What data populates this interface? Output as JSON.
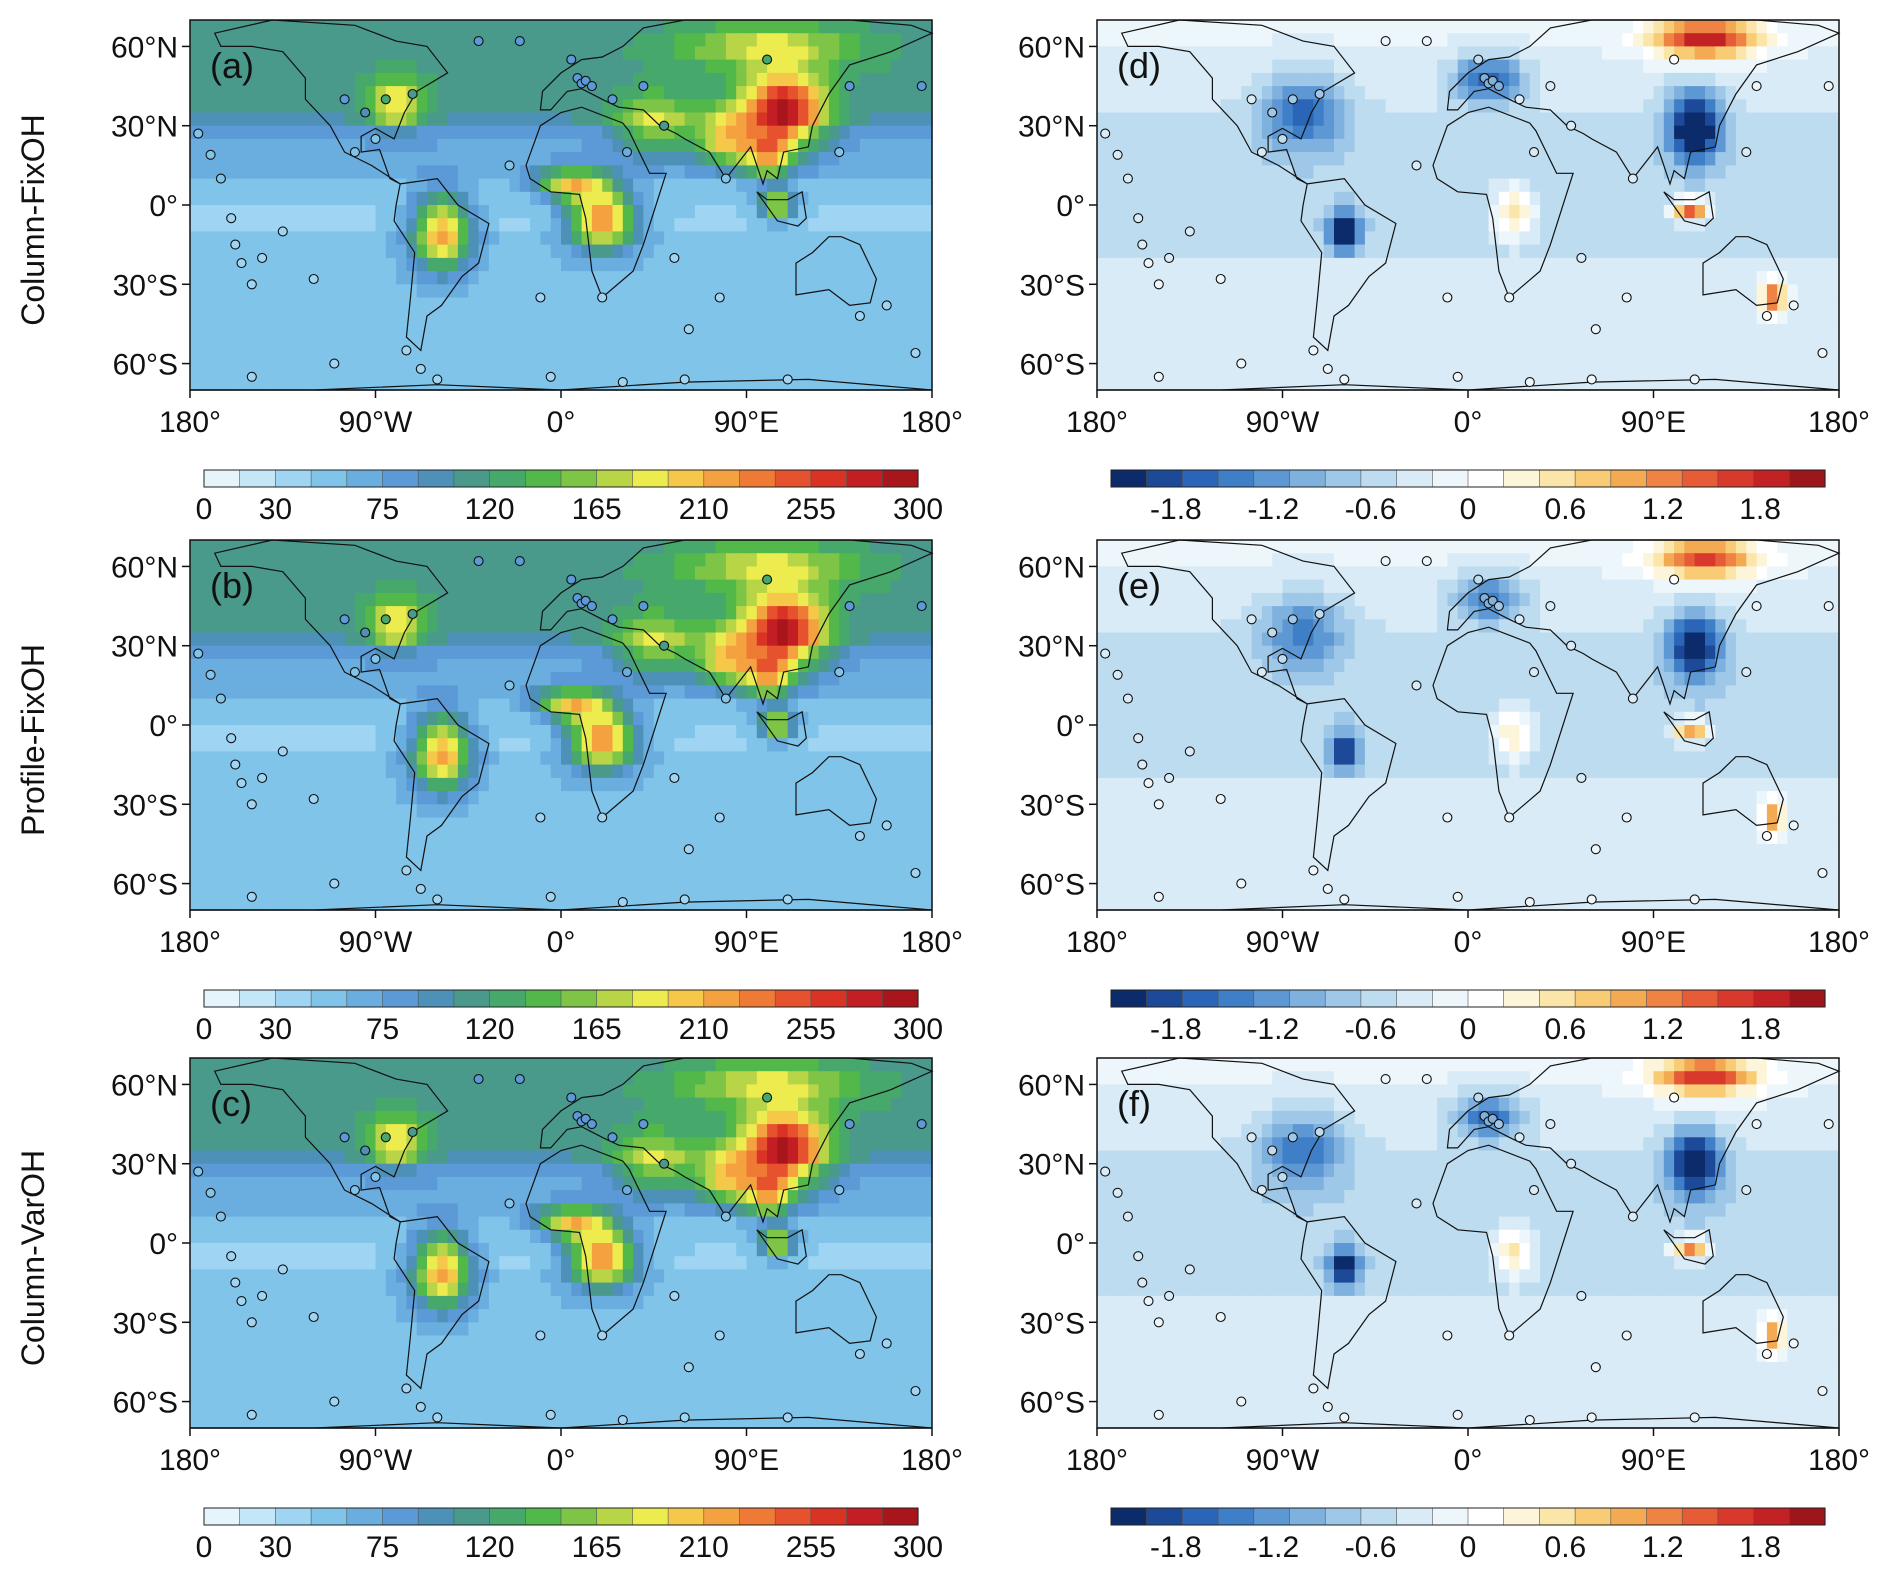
{
  "row_labels": [
    "Column-FixOH",
    "Profile-FixOH",
    "Column-VarOH"
  ],
  "panels": [
    {
      "letter": "(a)",
      "kind": "abs",
      "row": 0,
      "col": 0
    },
    {
      "letter": "(b)",
      "kind": "abs",
      "row": 1,
      "col": 0
    },
    {
      "letter": "(c)",
      "kind": "abs",
      "row": 2,
      "col": 0
    },
    {
      "letter": "(d)",
      "kind": "diff",
      "row": 0,
      "col": 1
    },
    {
      "letter": "(e)",
      "kind": "diff",
      "row": 1,
      "col": 1
    },
    {
      "letter": "(f)",
      "kind": "diff",
      "row": 2,
      "col": 1
    }
  ],
  "axes": {
    "lat_ticks": [
      "60°N",
      "30°N",
      "0°",
      "30°S",
      "60°S"
    ],
    "lat_values": [
      60,
      30,
      0,
      -30,
      -60
    ],
    "lon_ticks": [
      "180°",
      "90°W",
      "0°",
      "90°E",
      "180°"
    ],
    "lon_values": [
      -180,
      -90,
      0,
      90,
      180
    ],
    "lat_range": [
      -70,
      70
    ],
    "lon_range": [
      -180,
      180
    ]
  },
  "colorbar_abs": {
    "labels": [
      "0",
      "30",
      "75",
      "120",
      "165",
      "210",
      "255",
      "300"
    ],
    "label_values": [
      0,
      30,
      75,
      120,
      165,
      210,
      255,
      300
    ],
    "range": [
      0,
      300
    ],
    "colors": [
      "#e6f4fb",
      "#c4e7f7",
      "#9fd5f2",
      "#80c4ea",
      "#6aaee0",
      "#5b9ad6",
      "#4d90b8",
      "#4a9a8c",
      "#46a86a",
      "#52b84a",
      "#7ec447",
      "#b8d447",
      "#ecec4e",
      "#f5c84a",
      "#f4a23f",
      "#ef7a35",
      "#e5522d",
      "#d93326",
      "#c21e23",
      "#a8161c"
    ]
  },
  "colorbar_diff": {
    "labels": [
      "-1.8",
      "-1.2",
      "-0.6",
      "0",
      "0.6",
      "1.2",
      "1.8"
    ],
    "label_values": [
      -1.8,
      -1.2,
      -0.6,
      0,
      0.6,
      1.2,
      1.8
    ],
    "range": [
      -2.2,
      2.2
    ],
    "colors": [
      "#0c2b6b",
      "#1c4a98",
      "#2b65b8",
      "#3f7fc8",
      "#5e98d4",
      "#7fb1df",
      "#9fc8e8",
      "#bedcf0",
      "#d9ebf7",
      "#edf6fb",
      "#ffffff",
      "#fdf5d9",
      "#fbe5a8",
      "#f8cb74",
      "#f4a953",
      "#ee8343",
      "#e55c36",
      "#d8392c",
      "#c22224",
      "#9c161b"
    ]
  },
  "chart_data": [
    {
      "type": "heatmap",
      "panel": "(a)",
      "row_label": "Column-FixOH",
      "lon_range": [
        -180,
        180
      ],
      "lat_range": [
        -70,
        70
      ],
      "color_range": [
        0,
        300
      ]
    },
    {
      "type": "heatmap",
      "panel": "(b)",
      "row_label": "Profile-FixOH",
      "lon_range": [
        -180,
        180
      ],
      "lat_range": [
        -70,
        70
      ],
      "color_range": [
        0,
        300
      ]
    },
    {
      "type": "heatmap",
      "panel": "(c)",
      "row_label": "Column-VarOH",
      "lon_range": [
        -180,
        180
      ],
      "lat_range": [
        -70,
        70
      ],
      "color_range": [
        0,
        300
      ]
    },
    {
      "type": "heatmap",
      "panel": "(d)",
      "lon_range": [
        -180,
        180
      ],
      "lat_range": [
        -70,
        70
      ],
      "color_range": [
        -2.2,
        2.2
      ]
    },
    {
      "type": "heatmap",
      "panel": "(e)",
      "lon_range": [
        -180,
        180
      ],
      "lat_range": [
        -70,
        70
      ],
      "color_range": [
        -2.2,
        2.2
      ]
    },
    {
      "type": "heatmap",
      "panel": "(f)",
      "lon_range": [
        -180,
        180
      ],
      "lat_range": [
        -70,
        70
      ],
      "color_range": [
        -2.2,
        2.2
      ]
    }
  ],
  "hotspots_abs": [
    {
      "lon": 108,
      "lat": 35,
      "amp": 190,
      "slon": 14,
      "slat": 10
    },
    {
      "lon": 80,
      "lat": 25,
      "amp": 120,
      "slon": 10,
      "slat": 7
    },
    {
      "lon": 100,
      "lat": 18,
      "amp": 110,
      "slon": 8,
      "slat": 6
    },
    {
      "lon": 105,
      "lat": 0,
      "amp": 140,
      "slon": 6,
      "slat": 4
    },
    {
      "lon": 20,
      "lat": -5,
      "amp": 180,
      "slon": 12,
      "slat": 8
    },
    {
      "lon": 5,
      "lat": 8,
      "amp": 140,
      "slon": 12,
      "slat": 4
    },
    {
      "lon": -58,
      "lat": -10,
      "amp": 170,
      "slon": 10,
      "slat": 10
    },
    {
      "lon": -80,
      "lat": 38,
      "amp": 90,
      "slon": 10,
      "slat": 7
    },
    {
      "lon": 45,
      "lat": 30,
      "amp": 90,
      "slon": 14,
      "slat": 8
    },
    {
      "lon": 100,
      "lat": 60,
      "amp": 70,
      "slon": 30,
      "slat": 6
    }
  ],
  "hotspots_diff": [
    {
      "lon": 115,
      "lat": 63,
      "amp": 2.2,
      "slon": 18,
      "slat": 5
    },
    {
      "lon": 110,
      "lat": 30,
      "amp": -2.2,
      "slon": 9,
      "slat": 9
    },
    {
      "lon": 108,
      "lat": -2,
      "amp": 2.0,
      "slon": 6,
      "slat": 3
    },
    {
      "lon": 148,
      "lat": -35,
      "amp": 1.6,
      "slon": 4,
      "slat": 5
    },
    {
      "lon": 22,
      "lat": -3,
      "amp": 1.2,
      "slon": 7,
      "slat": 7
    },
    {
      "lon": -60,
      "lat": -10,
      "amp": -2.0,
      "slon": 5,
      "slat": 5
    },
    {
      "lon": -80,
      "lat": 35,
      "amp": -1.2,
      "slon": 14,
      "slat": 10
    },
    {
      "lon": 10,
      "lat": 48,
      "amp": -1.4,
      "slon": 12,
      "slat": 6
    }
  ],
  "sites": [
    [
      -176,
      27
    ],
    [
      -170,
      19
    ],
    [
      -165,
      10
    ],
    [
      -160,
      -5
    ],
    [
      -158,
      -15
    ],
    [
      -155,
      -22
    ],
    [
      -150,
      -30
    ],
    [
      -145,
      -20
    ],
    [
      -135,
      -10
    ],
    [
      -120,
      -28
    ],
    [
      -105,
      40
    ],
    [
      -100,
      20
    ],
    [
      -95,
      35
    ],
    [
      -85,
      40
    ],
    [
      -90,
      25
    ],
    [
      -72,
      42
    ],
    [
      -75,
      -55
    ],
    [
      -68,
      -62
    ],
    [
      -40,
      62
    ],
    [
      -25,
      15
    ],
    [
      -10,
      -35
    ],
    [
      5,
      55
    ],
    [
      8,
      48
    ],
    [
      10,
      46
    ],
    [
      12,
      47
    ],
    [
      15,
      45
    ],
    [
      20,
      -35
    ],
    [
      25,
      40
    ],
    [
      32,
      20
    ],
    [
      40,
      45
    ],
    [
      55,
      -20
    ],
    [
      62,
      -47
    ],
    [
      77,
      -35
    ],
    [
      80,
      10
    ],
    [
      110,
      -66
    ],
    [
      135,
      20
    ],
    [
      140,
      45
    ],
    [
      145,
      -42
    ],
    [
      158,
      -38
    ],
    [
      172,
      -56
    ],
    [
      -5,
      -65
    ],
    [
      30,
      -67
    ],
    [
      60,
      -66
    ],
    [
      -60,
      -66
    ],
    [
      -150,
      -65
    ],
    [
      100,
      55
    ],
    [
      50,
      30
    ],
    [
      -20,
      62
    ],
    [
      -110,
      -60
    ],
    [
      175,
      45
    ]
  ]
}
